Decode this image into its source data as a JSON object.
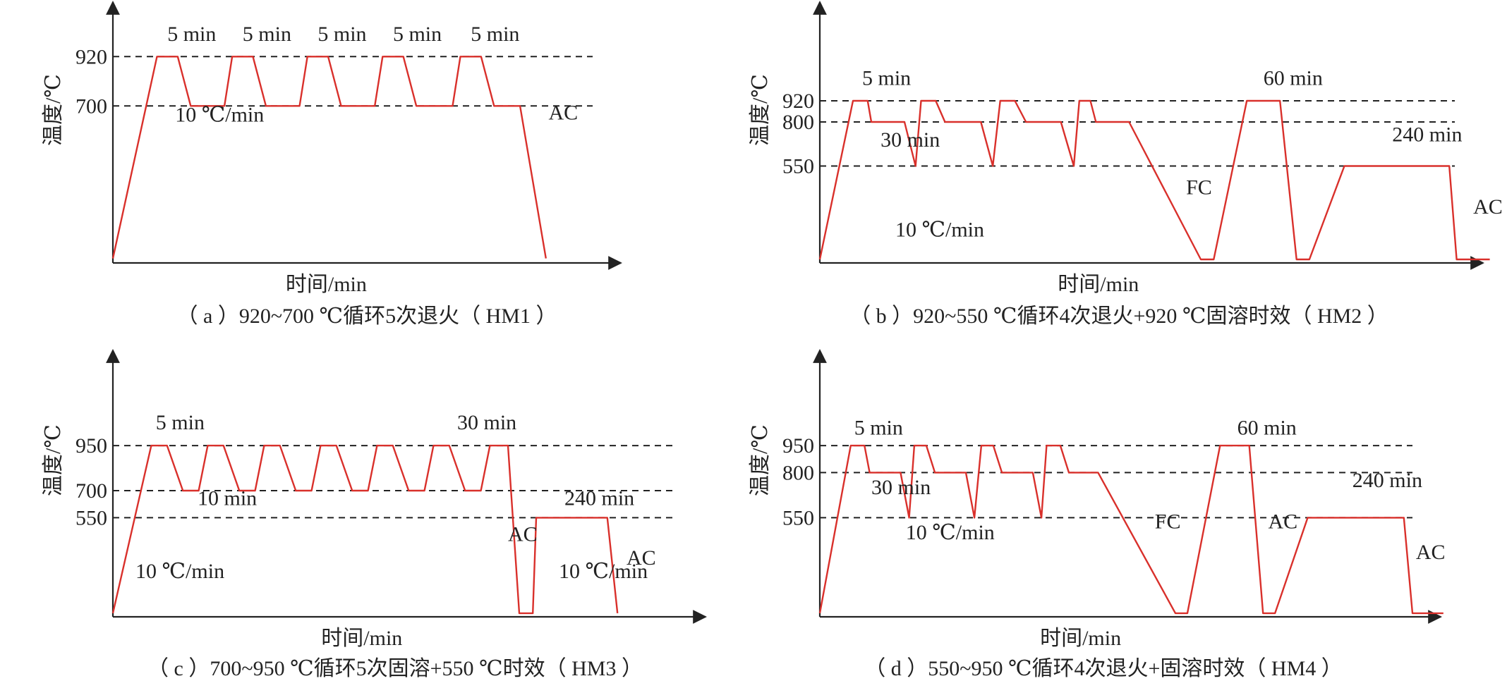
{
  "chart_data": [
    {
      "id": "a",
      "type": "line",
      "caption": "（ a ）920~700 ℃循环5次退火（ HM1 ）",
      "xlabel": "时间/min",
      "ylabel": "温度/℃",
      "yticks": [
        920,
        700
      ],
      "ylim": [
        0,
        1100
      ],
      "xlim": [
        0,
        185
      ],
      "series": [
        {
          "x": [
            0,
            17,
            25,
            30,
            43,
            46,
            54,
            59,
            72,
            75,
            83,
            88,
            101,
            104,
            112,
            117,
            131,
            134,
            142,
            147,
            157,
            167
          ],
          "y": [
            20,
            920,
            920,
            700,
            700,
            920,
            920,
            700,
            700,
            920,
            920,
            700,
            700,
            920,
            920,
            700,
            700,
            920,
            920,
            700,
            700,
            20
          ]
        }
      ],
      "annotations": [
        {
          "text": "5 min",
          "x": 21,
          "y": 990
        },
        {
          "text": "5 min",
          "x": 50,
          "y": 990
        },
        {
          "text": "5 min",
          "x": 79,
          "y": 990
        },
        {
          "text": "5 min",
          "x": 108,
          "y": 990
        },
        {
          "text": "5 min",
          "x": 138,
          "y": 990
        },
        {
          "text": "10 ℃/min",
          "x": 24,
          "y": 630
        },
        {
          "text": "AC",
          "x": 168,
          "y": 640
        }
      ]
    },
    {
      "id": "b",
      "type": "line",
      "caption": "（ b ）920~550 ℃循环4次退火+920 ℃固溶时效（ HM2 ）",
      "xlabel": "时间/min",
      "ylabel": "温度/℃",
      "yticks": [
        920,
        800,
        550
      ],
      "ylim": [
        0,
        1400
      ],
      "xlim": [
        0,
        690
      ],
      "series": [
        {
          "x": [
            0,
            36,
            52,
            56,
            92,
            104,
            110,
            126,
            136,
            175,
            188,
            196,
            212,
            224,
            226,
            262,
            276,
            282,
            294,
            300,
            336,
            414,
            428,
            464,
            500,
            518,
            532,
            570,
            684,
            692,
            728
          ],
          "y": [
            20,
            920,
            920,
            800,
            800,
            550,
            920,
            920,
            800,
            800,
            550,
            920,
            920,
            800,
            800,
            800,
            550,
            920,
            920,
            800,
            800,
            20,
            20,
            920,
            920,
            20,
            20,
            550,
            550,
            20,
            20
          ]
        }
      ],
      "annotations": [
        {
          "text": "5 min",
          "x": 46,
          "y": 1010
        },
        {
          "text": "30 min",
          "x": 66,
          "y": 660
        },
        {
          "text": "60 min",
          "x": 482,
          "y": 1010
        },
        {
          "text": "240 min",
          "x": 622,
          "y": 690
        },
        {
          "text": "FC",
          "x": 398,
          "y": 390
        },
        {
          "text": "AC",
          "x": 710,
          "y": 280
        },
        {
          "text": "10 ℃/min",
          "x": 82,
          "y": 150
        }
      ]
    },
    {
      "id": "c",
      "type": "line",
      "caption": "（ c ）700~950 ℃循环5次固溶+550 ℃时效（ HM3 ）",
      "xlabel": "时间/min",
      "ylabel": "温度/℃",
      "yticks": [
        950,
        700,
        550
      ],
      "ylim": [
        0,
        1400
      ],
      "xlim": [
        0,
        500
      ],
      "series": [
        {
          "x": [
            0,
            34,
            48,
            62,
            76,
            84,
            98,
            112,
            126,
            134,
            148,
            162,
            176,
            184,
            198,
            212,
            226,
            234,
            248,
            262,
            276,
            284,
            298,
            312,
            326,
            334,
            350,
            360,
            372,
            375,
            438,
            447
          ],
          "y": [
            20,
            950,
            950,
            700,
            700,
            950,
            950,
            700,
            700,
            950,
            950,
            700,
            700,
            950,
            950,
            700,
            700,
            950,
            950,
            700,
            700,
            950,
            950,
            700,
            700,
            950,
            950,
            20,
            20,
            550,
            550,
            20
          ]
        }
      ],
      "annotations": [
        {
          "text": "5 min",
          "x": 38,
          "y": 1040
        },
        {
          "text": "10 min",
          "x": 75,
          "y": 620
        },
        {
          "text": "30 min",
          "x": 305,
          "y": 1040
        },
        {
          "text": "240 min",
          "x": 400,
          "y": 620
        },
        {
          "text": "AC",
          "x": 350,
          "y": 420
        },
        {
          "text": "AC",
          "x": 455,
          "y": 290
        },
        {
          "text": "10 ℃/min",
          "x": 20,
          "y": 215
        },
        {
          "text": "10 ℃/min",
          "x": 395,
          "y": 215
        }
      ]
    },
    {
      "id": "d",
      "type": "line",
      "caption": "（ d ）550~950 ℃循环4次退火+固溶时效（ HM4 ）",
      "xlabel": "时间/min",
      "ylabel": "温度/℃",
      "yticks": [
        950,
        800,
        550
      ],
      "ylim": [
        0,
        1400
      ],
      "xlim": [
        0,
        690
      ],
      "series": [
        {
          "x": [
            0,
            36,
            52,
            58,
            94,
            104,
            110,
            124,
            134,
            170,
            180,
            188,
            202,
            212,
            214,
            248,
            258,
            264,
            280,
            290,
            324,
            414,
            428,
            466,
            500,
            516,
            530,
            568,
            680,
            690,
            726
          ],
          "y": [
            20,
            950,
            950,
            800,
            800,
            550,
            950,
            950,
            800,
            800,
            550,
            950,
            950,
            800,
            800,
            800,
            550,
            950,
            950,
            800,
            800,
            20,
            20,
            950,
            950,
            20,
            20,
            550,
            550,
            20,
            20
          ]
        }
      ],
      "annotations": [
        {
          "text": "5 min",
          "x": 40,
          "y": 1010
        },
        {
          "text": "30 min",
          "x": 60,
          "y": 680
        },
        {
          "text": "60 min",
          "x": 486,
          "y": 1010
        },
        {
          "text": "240 min",
          "x": 620,
          "y": 720
        },
        {
          "text": "FC",
          "x": 390,
          "y": 490
        },
        {
          "text": "AC",
          "x": 522,
          "y": 490
        },
        {
          "text": "AC",
          "x": 694,
          "y": 320
        },
        {
          "text": "10 ℃/min",
          "x": 100,
          "y": 430
        }
      ]
    }
  ]
}
